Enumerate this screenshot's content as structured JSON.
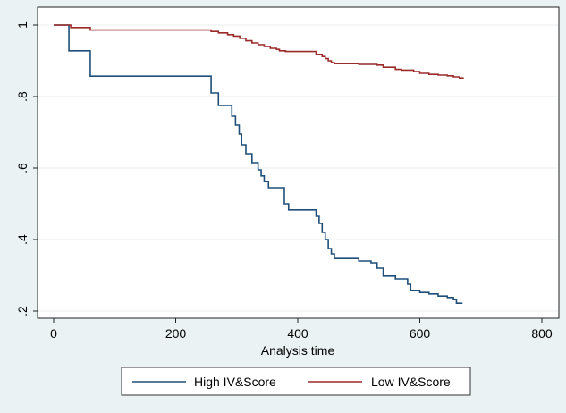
{
  "chart_data": {
    "type": "line",
    "step": true,
    "xlabel": "Analysis time",
    "ylabel": "",
    "xlim": [
      0,
      800
    ],
    "ylim": [
      0.2,
      1.0
    ],
    "xticks": [
      0,
      200,
      400,
      600,
      800
    ],
    "yticks": [
      0.2,
      0.4,
      0.6,
      0.8,
      1.0
    ],
    "xtick_labels": [
      "0",
      "200",
      "400",
      "600",
      "800"
    ],
    "ytick_labels": [
      ".2",
      ".4",
      ".6",
      ".8",
      "1"
    ],
    "grid": "horizontal",
    "legend": "bottom",
    "series": [
      {
        "name": "High IV&Score",
        "color": "#1f4e79",
        "x": [
          0,
          25,
          60,
          258,
          270,
          292,
          298,
          304,
          308,
          315,
          325,
          335,
          340,
          345,
          352,
          360,
          378,
          385,
          395,
          430,
          435,
          440,
          445,
          450,
          455,
          460,
          500,
          520,
          530,
          540,
          560,
          580,
          585,
          600,
          615,
          630,
          645,
          655,
          660,
          670
        ],
        "y": [
          1.0,
          0.928,
          0.857,
          0.81,
          0.775,
          0.745,
          0.72,
          0.695,
          0.665,
          0.64,
          0.615,
          0.595,
          0.578,
          0.562,
          0.545,
          0.545,
          0.5,
          0.483,
          0.483,
          0.465,
          0.445,
          0.42,
          0.4,
          0.375,
          0.36,
          0.347,
          0.34,
          0.335,
          0.32,
          0.298,
          0.29,
          0.275,
          0.258,
          0.252,
          0.248,
          0.242,
          0.238,
          0.232,
          0.222,
          0.222
        ]
      },
      {
        "name": "Low IV&Score",
        "color": "#9b2a2a",
        "x": [
          0,
          28,
          60,
          150,
          258,
          270,
          285,
          295,
          305,
          315,
          325,
          335,
          345,
          355,
          365,
          370,
          380,
          390,
          430,
          440,
          445,
          450,
          455,
          460,
          500,
          530,
          540,
          560,
          570,
          590,
          600,
          615,
          630,
          645,
          655,
          665,
          672
        ],
        "y": [
          1.0,
          0.993,
          0.986,
          0.986,
          0.982,
          0.978,
          0.973,
          0.969,
          0.963,
          0.956,
          0.95,
          0.945,
          0.94,
          0.935,
          0.932,
          0.928,
          0.926,
          0.926,
          0.918,
          0.912,
          0.906,
          0.9,
          0.895,
          0.892,
          0.89,
          0.888,
          0.882,
          0.876,
          0.874,
          0.87,
          0.865,
          0.862,
          0.86,
          0.858,
          0.855,
          0.852,
          0.852
        ]
      }
    ]
  }
}
